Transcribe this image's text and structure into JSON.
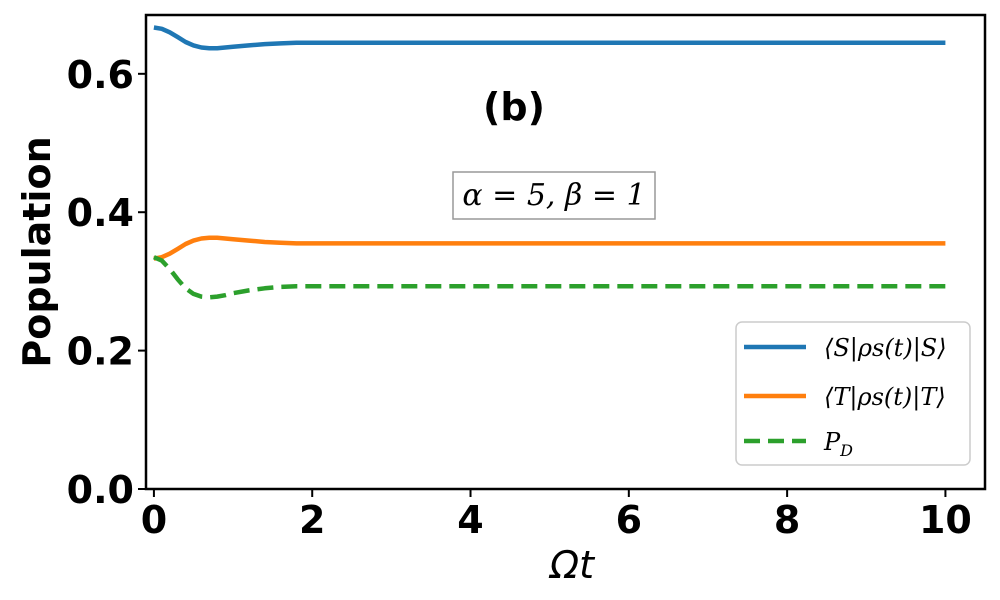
{
  "chart_data": {
    "type": "line",
    "title": "",
    "xlabel": "Ωt",
    "ylabel": "Population",
    "xlim": [
      -0.1,
      10.5
    ],
    "ylim": [
      0.0,
      0.685
    ],
    "xticks": [
      0,
      2,
      4,
      6,
      8,
      10
    ],
    "xtick_labels": [
      "0",
      "2",
      "4",
      "6",
      "8",
      "10"
    ],
    "yticks": [
      0.0,
      0.2,
      0.4,
      0.6
    ],
    "ytick_labels": [
      "0.0",
      "0.2",
      "0.4",
      "0.6"
    ],
    "grid": false,
    "legend_position": "lower-right",
    "annotations": {
      "panel": "(b)",
      "params": "α = 5, β = 1"
    },
    "series": [
      {
        "name": "⟨S|ρs(t)|S⟩",
        "color": "#1f77b4",
        "style": "solid",
        "x": [
          0,
          0.1,
          0.2,
          0.3,
          0.4,
          0.5,
          0.6,
          0.7,
          0.8,
          0.9,
          1.0,
          1.2,
          1.4,
          1.6,
          1.8,
          2.0,
          2.5,
          3,
          4,
          5,
          6,
          7,
          8,
          9,
          10
        ],
        "y": [
          0.667,
          0.665,
          0.66,
          0.653,
          0.646,
          0.641,
          0.638,
          0.637,
          0.637,
          0.638,
          0.639,
          0.641,
          0.643,
          0.644,
          0.645,
          0.645,
          0.645,
          0.645,
          0.645,
          0.645,
          0.645,
          0.645,
          0.645,
          0.645,
          0.645
        ]
      },
      {
        "name": "⟨T|ρs(t)|T⟩",
        "color": "#ff7f0e",
        "style": "solid",
        "x": [
          0,
          0.1,
          0.2,
          0.3,
          0.4,
          0.5,
          0.6,
          0.7,
          0.8,
          0.9,
          1.0,
          1.2,
          1.4,
          1.6,
          1.8,
          2.0,
          2.5,
          3,
          4,
          5,
          6,
          7,
          8,
          9,
          10
        ],
        "y": [
          0.333,
          0.335,
          0.34,
          0.347,
          0.354,
          0.359,
          0.362,
          0.363,
          0.363,
          0.362,
          0.361,
          0.359,
          0.357,
          0.356,
          0.355,
          0.355,
          0.355,
          0.355,
          0.355,
          0.355,
          0.355,
          0.355,
          0.355,
          0.355,
          0.355
        ]
      },
      {
        "name": "P_D",
        "color": "#2ca02c",
        "style": "dashed",
        "x": [
          0,
          0.1,
          0.2,
          0.3,
          0.4,
          0.5,
          0.6,
          0.7,
          0.8,
          0.9,
          1.0,
          1.2,
          1.4,
          1.6,
          1.8,
          2.0,
          2.5,
          3,
          4,
          5,
          6,
          7,
          8,
          9,
          10
        ],
        "y": [
          0.335,
          0.33,
          0.318,
          0.303,
          0.29,
          0.282,
          0.278,
          0.277,
          0.278,
          0.28,
          0.283,
          0.287,
          0.29,
          0.292,
          0.293,
          0.293,
          0.293,
          0.293,
          0.293,
          0.293,
          0.293,
          0.293,
          0.293,
          0.293,
          0.293
        ]
      }
    ]
  }
}
